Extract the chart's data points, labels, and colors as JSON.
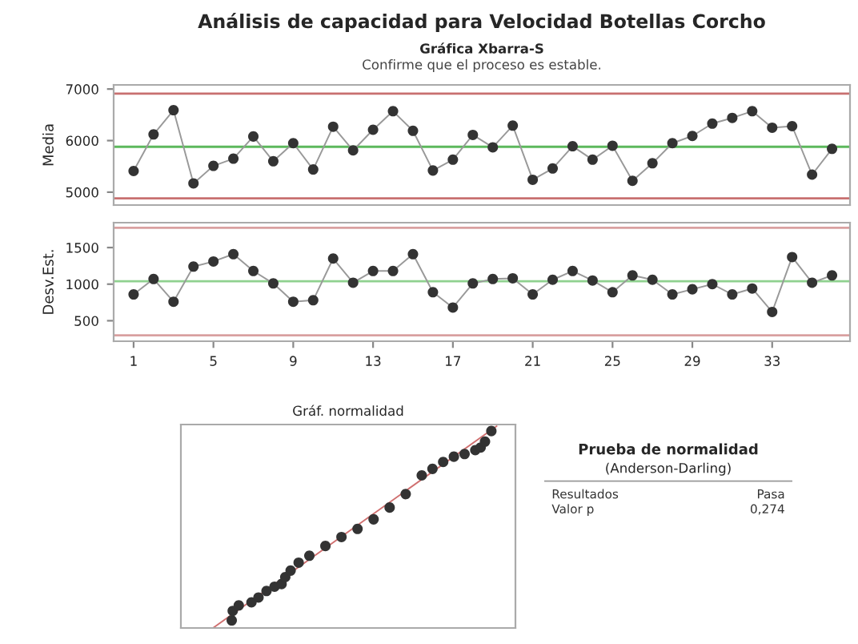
{
  "chart_data": [
    {
      "type": "line",
      "title": "Análisis de capacidad para Velocidad Botellas Corcho",
      "subtitle": "Gráfica Xbarra-S",
      "annotations": [
        "Confirme que el proceso es estable."
      ],
      "ylabel": "Media",
      "marker": "circle",
      "tick_labels": "y",
      "grid": false,
      "x": [
        1,
        2,
        3,
        4,
        5,
        6,
        7,
        8,
        9,
        10,
        11,
        12,
        13,
        14,
        15,
        16,
        17,
        18,
        19,
        20,
        21,
        22,
        23,
        24,
        25,
        26,
        27,
        28,
        29,
        30,
        31,
        32,
        33,
        34,
        35,
        36
      ],
      "series": [
        {
          "color": "#333333",
          "values": [
            5410,
            6120,
            6590,
            5170,
            5510,
            5650,
            6080,
            5600,
            5950,
            5440,
            6270,
            5810,
            6210,
            6570,
            6190,
            5420,
            5630,
            6110,
            5870,
            6290,
            5240,
            5460,
            5890,
            5630,
            5900,
            5220,
            5560,
            5950,
            6090,
            6330,
            6440,
            6570,
            6250,
            6280,
            5340,
            5840
          ]
        }
      ],
      "xlim": [
        0,
        36.9
      ],
      "ylim": [
        4750,
        7080
      ],
      "yticks": [
        5000,
        6000,
        7000
      ],
      "ref_lines": [
        {
          "axis": "y",
          "value": 6910,
          "color": "#c87070"
        },
        {
          "axis": "y",
          "value": 5880,
          "color": "#5cb85c"
        },
        {
          "axis": "y",
          "value": 4880,
          "color": "#c87070"
        }
      ]
    },
    {
      "type": "line",
      "ylabel": "Desv.Est.",
      "marker": "circle",
      "grid": false,
      "x": [
        1,
        2,
        3,
        4,
        5,
        6,
        7,
        8,
        9,
        10,
        11,
        12,
        13,
        14,
        15,
        16,
        17,
        18,
        19,
        20,
        21,
        22,
        23,
        24,
        25,
        26,
        27,
        28,
        29,
        30,
        31,
        32,
        33,
        34,
        35,
        36
      ],
      "series": [
        {
          "color": "#333333",
          "values": [
            860,
            1070,
            760,
            1240,
            1310,
            1410,
            1180,
            1010,
            760,
            780,
            1350,
            1020,
            1180,
            1180,
            1410,
            890,
            680,
            1010,
            1070,
            1080,
            860,
            1060,
            1180,
            1050,
            890,
            1120,
            1060,
            860,
            930,
            1000,
            860,
            940,
            620,
            1370,
            1020,
            1120
          ]
        }
      ],
      "xlim": [
        0,
        36.9
      ],
      "ylim": [
        220,
        1840
      ],
      "xticks": [
        1,
        5,
        9,
        13,
        17,
        21,
        25,
        29,
        33
      ],
      "yticks": [
        500,
        1000,
        1500
      ],
      "ref_lines": [
        {
          "axis": "y",
          "value": 1770,
          "color": "#d9a0a0"
        },
        {
          "axis": "y",
          "value": 1040,
          "color": "#8fd18f"
        },
        {
          "axis": "y",
          "value": 300,
          "color": "#d9a0a0"
        }
      ]
    },
    {
      "type": "other",
      "title": "Gráf. normalidad"
    },
    {
      "type": "other",
      "title": "Prueba de normalidad",
      "subtitle": "(Anderson-Darling)",
      "annotations": [
        "Resultados",
        "Pasa",
        "Valor p",
        "0,274"
      ]
    }
  ]
}
